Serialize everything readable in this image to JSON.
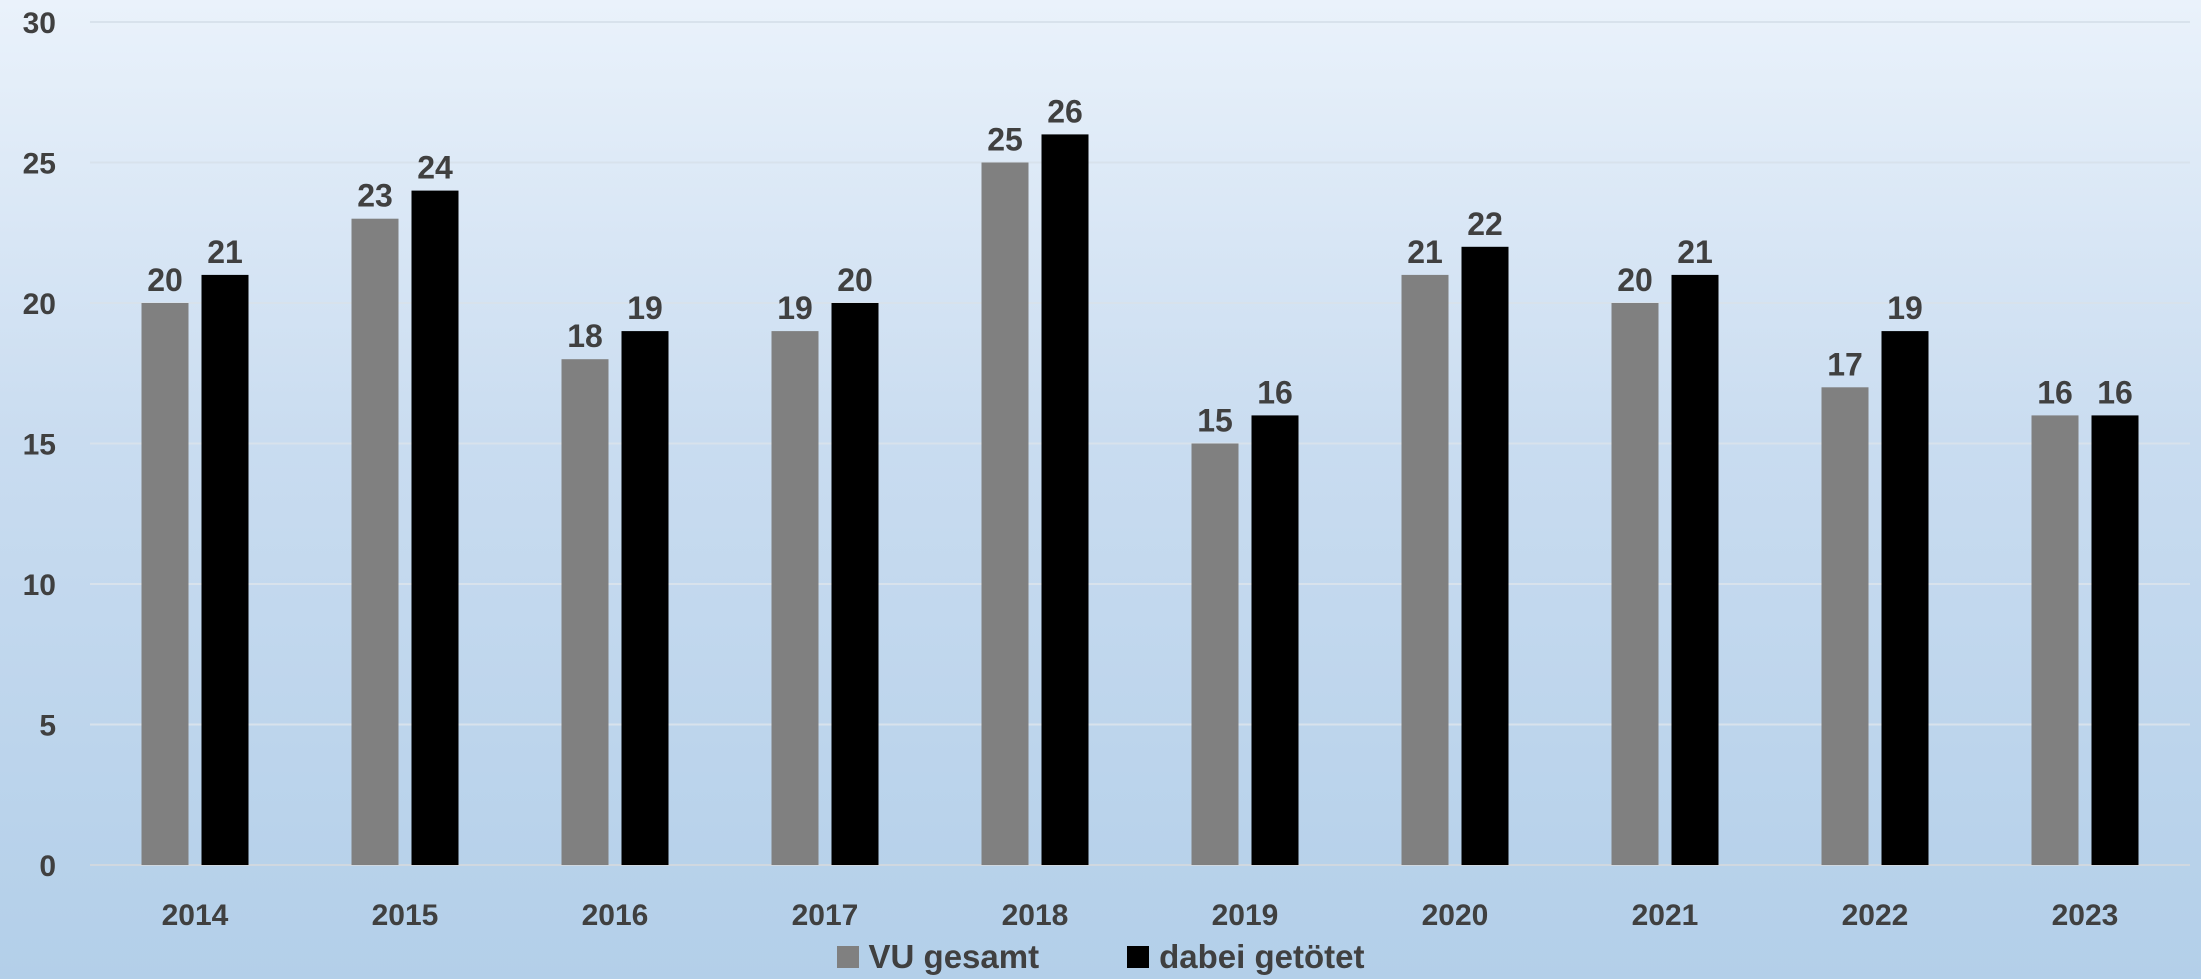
{
  "chart_data": {
    "type": "bar",
    "categories": [
      "2014",
      "2015",
      "2016",
      "2017",
      "2018",
      "2019",
      "2020",
      "2021",
      "2022",
      "2023"
    ],
    "series": [
      {
        "name": "VU gesamt",
        "color": "#808080",
        "values": [
          20,
          23,
          18,
          19,
          25,
          15,
          21,
          20,
          17,
          16
        ]
      },
      {
        "name": "dabei getötet",
        "color": "#000000",
        "values": [
          21,
          24,
          19,
          20,
          26,
          16,
          22,
          21,
          19,
          16
        ]
      }
    ],
    "title": "",
    "xlabel": "",
    "ylabel": "",
    "ylim": [
      0,
      30
    ],
    "yticks": [
      0,
      5,
      10,
      15,
      20,
      25,
      30
    ],
    "grid": true,
    "legend_position": "bottom"
  }
}
